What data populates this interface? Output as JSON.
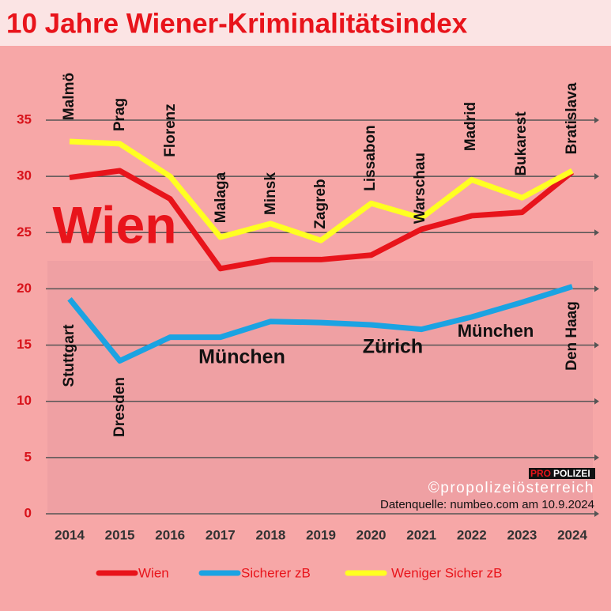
{
  "chart_data": {
    "type": "line",
    "title": "10 Jahre Wiener-Kriminalitätsindex",
    "categories": [
      "2014",
      "2015",
      "2016",
      "2017",
      "2018",
      "2019",
      "2020",
      "2021",
      "2022",
      "2023",
      "2024"
    ],
    "series": [
      {
        "name": "Wien",
        "color": "#e8141b",
        "values": [
          29.9,
          30.5,
          28,
          21.8,
          22.6,
          22.6,
          23,
          25.3,
          26.5,
          26.8,
          30.4
        ]
      },
      {
        "name": "Sicherer zB",
        "color": "#1ba3e2",
        "values": [
          19.1,
          13.6,
          15.7,
          15.7,
          17.1,
          17,
          16.8,
          16.4,
          17.5,
          18.8,
          20.2
        ]
      },
      {
        "name": "Weniger Sicher zB",
        "color": "#ffff22",
        "values": [
          33.1,
          32.9,
          30,
          24.6,
          25.8,
          24.3,
          27.6,
          26.3,
          29.7,
          28.1,
          30.5
        ]
      }
    ],
    "ylim": [
      0,
      35
    ],
    "yticks": [
      0,
      5,
      10,
      15,
      20,
      25,
      30,
      35
    ],
    "grid": true,
    "annotations": [
      "Malmö",
      "Prag",
      "Florenz",
      "Malaga",
      "Minsk",
      "Zagreb",
      "Lissabon",
      "Warschau",
      "Madrid",
      "Bukarest",
      "Bratislava",
      "Stuttgart",
      "Dresden",
      "Den Haag",
      "München",
      "Zürich",
      "München",
      "Wien"
    ],
    "logo": [
      "PRO",
      "POLIZEI"
    ],
    "copyright": "©propolizeiösterreich",
    "source": "Datenquelle: numbeo.com am 10.9.2024"
  }
}
